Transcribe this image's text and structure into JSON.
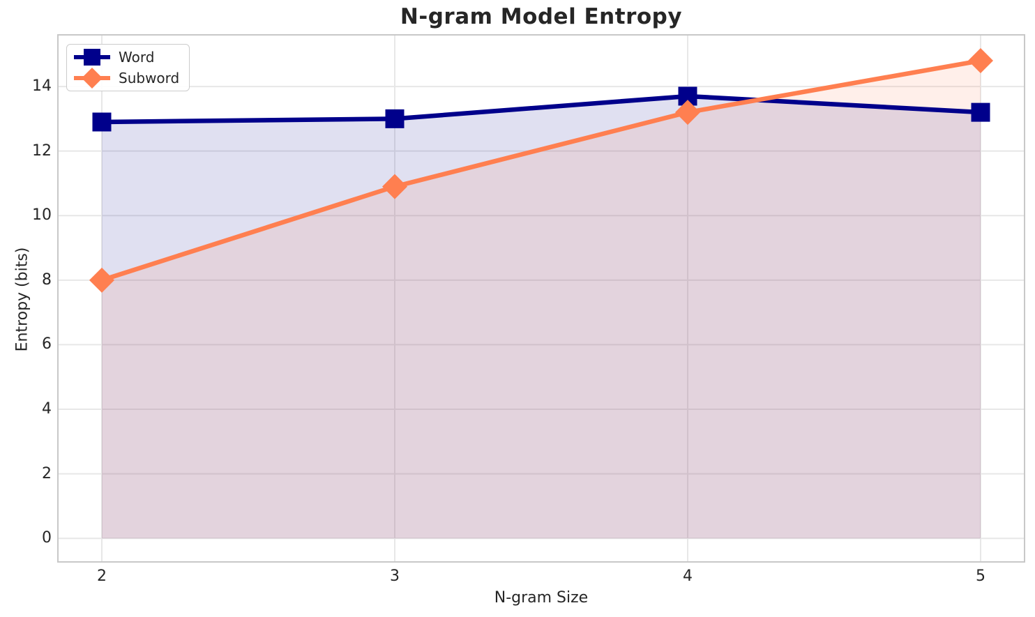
{
  "chart_data": {
    "type": "line",
    "title": "N-gram Model Entropy",
    "xlabel": "N-gram Size",
    "ylabel": "Entropy (bits)",
    "x": [
      2,
      3,
      4,
      5
    ],
    "series": [
      {
        "name": "Word",
        "values": [
          12.9,
          13.0,
          13.7,
          13.2
        ],
        "color": "#00008B",
        "marker": "square",
        "fill_to_zero": true
      },
      {
        "name": "Subword",
        "values": [
          8.0,
          10.9,
          13.2,
          14.8
        ],
        "color": "#FF7F50",
        "marker": "diamond",
        "fill_to_zero": true
      }
    ],
    "xticks": [
      "2",
      "3",
      "4",
      "5"
    ],
    "xtick_values": [
      2,
      3,
      4,
      5
    ],
    "yticks": [
      "0",
      "2",
      "4",
      "6",
      "8",
      "10",
      "12",
      "14"
    ],
    "ytick_values": [
      0,
      2,
      4,
      6,
      8,
      10,
      12,
      14
    ],
    "xlim": [
      1.85,
      5.15
    ],
    "ylim": [
      -0.73,
      15.6
    ],
    "grid": true,
    "legend_position": "upper-left",
    "fill_alpha": 0.12,
    "line_width": 6.5,
    "colors": {
      "grid": "#e7e7e7",
      "spine": "#c8c8c8",
      "text": "#262626",
      "background": "#ffffff"
    }
  }
}
